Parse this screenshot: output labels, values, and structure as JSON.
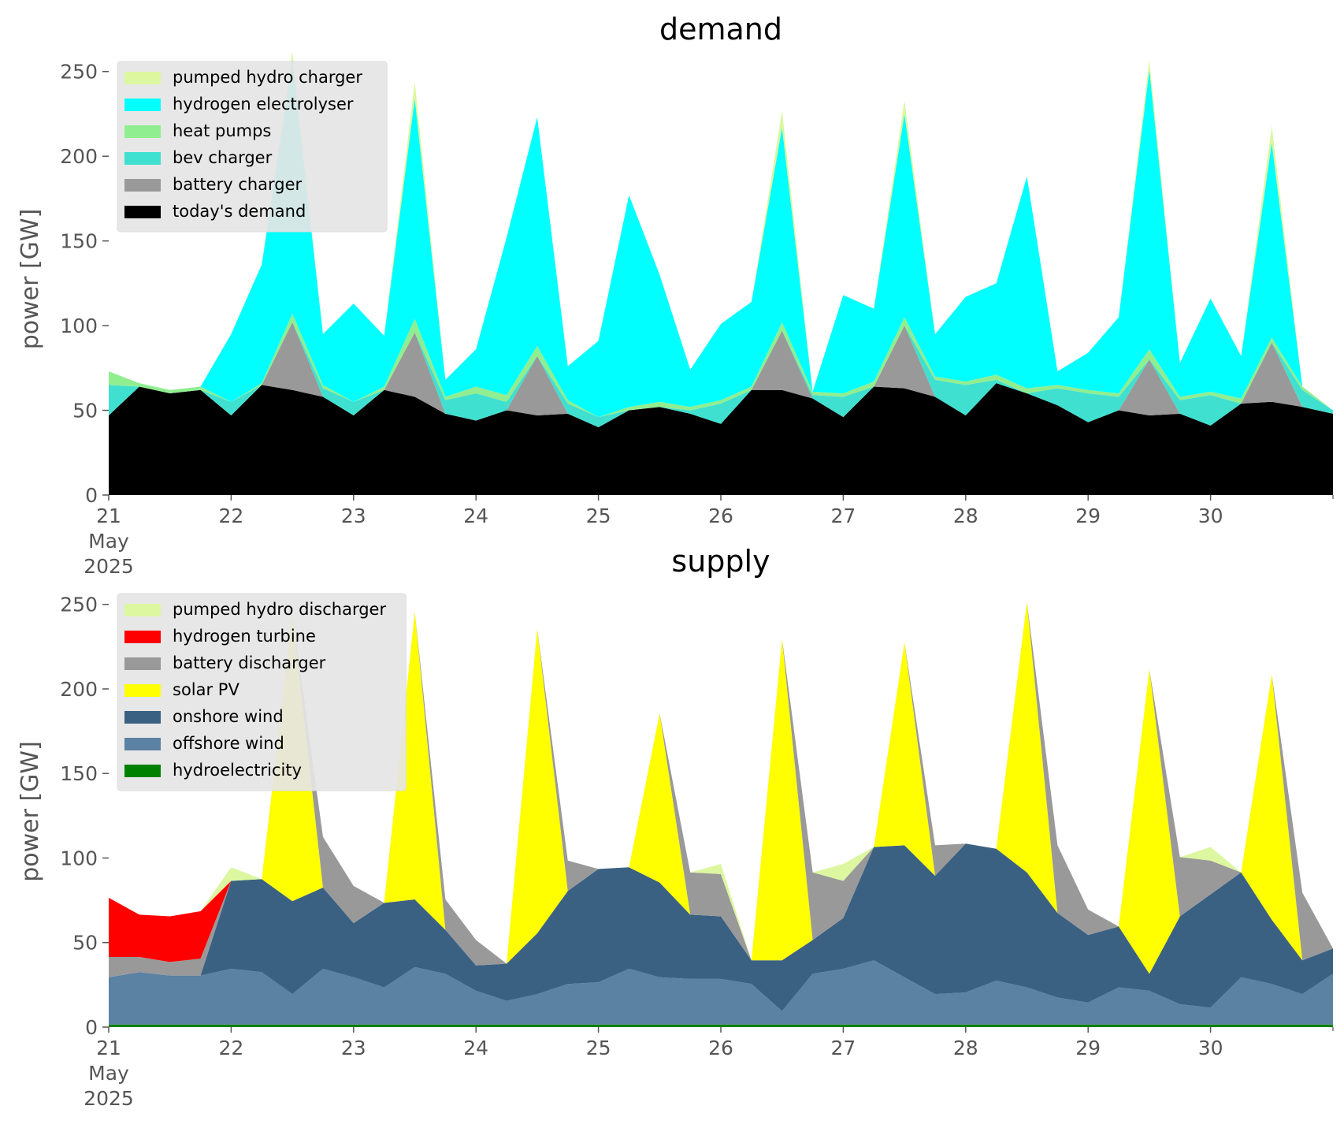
{
  "chart_data": [
    {
      "type": "area",
      "title": "demand",
      "ylabel": "power [GW]",
      "xlabel": "",
      "ylim": [
        0,
        255
      ],
      "yticks": [
        0,
        50,
        100,
        150,
        200,
        250
      ],
      "xlim": [
        0,
        10
      ],
      "xtick_labels": [
        "21\nMay\n2025",
        "22",
        "23",
        "24",
        "25",
        "26",
        "27",
        "28",
        "29",
        "30"
      ],
      "grid": false,
      "legend_position": "top-left",
      "legend": [
        "pumped hydro charger",
        "hydrogen electrolyser",
        "heat pumps",
        "bev charger",
        "battery charger",
        "today's demand"
      ],
      "x": [
        0,
        0.25,
        0.5,
        0.75,
        1,
        1.25,
        1.5,
        1.75,
        2,
        2.25,
        2.5,
        2.75,
        3,
        3.25,
        3.5,
        3.75,
        4,
        4.25,
        4.5,
        4.75,
        5,
        5.25,
        5.5,
        5.75,
        6,
        6.25,
        6.5,
        6.75,
        7,
        7.25,
        7.5,
        7.75,
        8,
        8.25,
        8.5,
        8.75,
        9,
        9.25,
        9.5,
        9.75,
        10
      ],
      "series": [
        {
          "name": "today's demand",
          "color": "#000000",
          "values": [
            47,
            64,
            60,
            62,
            47,
            65,
            62,
            58,
            47,
            62,
            58,
            48,
            44,
            50,
            47,
            48,
            40,
            50,
            52,
            48,
            42,
            62,
            62,
            57,
            46,
            64,
            63,
            58,
            47,
            66,
            60,
            53,
            43,
            50,
            47,
            48,
            41,
            54,
            55,
            52,
            48
          ]
        },
        {
          "name": "battery charger",
          "color": "#999999",
          "values": [
            0,
            0,
            0,
            0,
            0,
            0,
            40,
            0,
            0,
            0,
            38,
            0,
            0,
            0,
            35,
            0,
            0,
            0,
            0,
            0,
            0,
            0,
            35,
            0,
            0,
            0,
            37,
            0,
            0,
            0,
            0,
            0,
            0,
            0,
            33,
            0,
            0,
            0,
            35,
            0,
            0
          ]
        },
        {
          "name": "bev charger",
          "color": "#40e0d0",
          "values": [
            18,
            0,
            0,
            0,
            8,
            0,
            0,
            5,
            8,
            0,
            0,
            8,
            16,
            5,
            0,
            6,
            6,
            0,
            0,
            2,
            12,
            0,
            0,
            2,
            12,
            0,
            0,
            10,
            18,
            2,
            0,
            10,
            17,
            8,
            0,
            8,
            18,
            0,
            0,
            10,
            2
          ]
        },
        {
          "name": "heat pumps",
          "color": "#90ee90",
          "values": [
            8,
            2,
            2,
            2,
            0,
            1,
            5,
            2,
            0,
            2,
            8,
            2,
            4,
            4,
            6,
            2,
            0,
            2,
            3,
            2,
            2,
            2,
            5,
            2,
            2,
            3,
            5,
            2,
            2,
            3,
            3,
            2,
            2,
            2,
            6,
            2,
            2,
            3,
            3,
            2,
            0
          ]
        },
        {
          "name": "hydrogen electrolyser",
          "color": "#00ffff",
          "values": [
            0,
            0,
            0,
            0,
            40,
            70,
            150,
            30,
            58,
            30,
            130,
            10,
            22,
            93,
            135,
            20,
            45,
            125,
            75,
            22,
            45,
            50,
            115,
            0,
            58,
            43,
            120,
            25,
            50,
            54,
            125,
            8,
            22,
            45,
            165,
            20,
            55,
            25,
            115,
            0,
            0
          ]
        },
        {
          "name": "pumped hydro charger",
          "color": "#dcf7a0",
          "values": [
            0,
            0,
            0,
            0,
            0,
            0,
            5,
            0,
            0,
            0,
            10,
            0,
            0,
            0,
            0,
            0,
            0,
            0,
            0,
            0,
            0,
            0,
            10,
            0,
            0,
            0,
            8,
            0,
            0,
            0,
            0,
            0,
            0,
            0,
            6,
            0,
            0,
            0,
            10,
            0,
            0
          ]
        }
      ]
    },
    {
      "type": "area",
      "title": "supply",
      "ylabel": "power [GW]",
      "xlabel": "",
      "ylim": [
        0,
        255
      ],
      "yticks": [
        0,
        50,
        100,
        150,
        200,
        250
      ],
      "xlim": [
        0,
        10
      ],
      "xtick_labels": [
        "21\nMay\n2025",
        "22",
        "23",
        "24",
        "25",
        "26",
        "27",
        "28",
        "29",
        "30"
      ],
      "grid": false,
      "legend_position": "top-left",
      "legend": [
        "pumped hydro discharger",
        "hydrogen turbine",
        "battery discharger",
        "solar PV",
        "onshore wind",
        "offshore wind",
        "hydroelectricity"
      ],
      "x": [
        0,
        0.25,
        0.5,
        0.75,
        1,
        1.25,
        1.5,
        1.75,
        2,
        2.25,
        2.5,
        2.75,
        3,
        3.25,
        3.5,
        3.75,
        4,
        4.25,
        4.5,
        4.75,
        5,
        5.25,
        5.5,
        5.75,
        6,
        6.25,
        6.5,
        6.75,
        7,
        7.25,
        7.5,
        7.75,
        8,
        8.25,
        8.5,
        8.75,
        9,
        9.25,
        9.5,
        9.75,
        10
      ],
      "series": [
        {
          "name": "hydroelectricity",
          "color": "#008000",
          "values": [
            1.5,
            1.5,
            1.5,
            1.5,
            1.5,
            1.5,
            1.5,
            1.5,
            1.5,
            1.5,
            1.5,
            1.5,
            1.5,
            1.5,
            1.5,
            1.5,
            1.5,
            1.5,
            1.5,
            1.5,
            1.5,
            1.5,
            1.5,
            1.5,
            1.5,
            1.5,
            1.5,
            1.5,
            1.5,
            1.5,
            1.5,
            1.5,
            1.5,
            1.5,
            1.5,
            1.5,
            1.5,
            1.5,
            1.5,
            1.5,
            1.5
          ]
        },
        {
          "name": "offshore wind",
          "color": "#5b81a3",
          "values": [
            28,
            31,
            29,
            29,
            33,
            31,
            18,
            33,
            28,
            22,
            34,
            30,
            20,
            14,
            18,
            24,
            25,
            33,
            28,
            27,
            27,
            24,
            8,
            30,
            33,
            38,
            28,
            18,
            19,
            26,
            22,
            16,
            13,
            22,
            20,
            12,
            10,
            28,
            24,
            18,
            30
          ]
        },
        {
          "name": "onshore wind",
          "color": "#3b6182",
          "values": [
            0,
            0,
            0,
            0,
            52,
            55,
            55,
            48,
            32,
            50,
            40,
            26,
            15,
            22,
            36,
            55,
            67,
            60,
            56,
            38,
            37,
            14,
            30,
            20,
            30,
            67,
            78,
            70,
            88,
            78,
            68,
            50,
            40,
            36,
            10,
            52,
            67,
            62,
            38,
            20,
            15
          ]
        },
        {
          "name": "solar PV",
          "color": "#ffff00",
          "values": [
            0,
            0,
            0,
            0,
            0,
            0,
            170,
            0,
            0,
            0,
            170,
            0,
            0,
            0,
            180,
            0,
            0,
            0,
            100,
            0,
            0,
            0,
            190,
            0,
            0,
            0,
            120,
            0,
            0,
            0,
            160,
            0,
            0,
            0,
            180,
            0,
            0,
            0,
            145,
            0,
            0
          ]
        },
        {
          "name": "battery discharger",
          "color": "#999999",
          "values": [
            12,
            9,
            8,
            10,
            0,
            0,
            0,
            30,
            22,
            0,
            0,
            18,
            15,
            0,
            0,
            18,
            0,
            0,
            0,
            25,
            25,
            0,
            0,
            40,
            22,
            0,
            0,
            18,
            0,
            0,
            0,
            40,
            15,
            0,
            0,
            35,
            20,
            0,
            0,
            40,
            0
          ]
        },
        {
          "name": "hydrogen turbine",
          "color": "#ff0000",
          "values": [
            35,
            25,
            27,
            28,
            0,
            0,
            0,
            0,
            0,
            0,
            0,
            0,
            0,
            0,
            0,
            0,
            0,
            0,
            0,
            0,
            0,
            0,
            0,
            0,
            0,
            0,
            0,
            0,
            0,
            0,
            0,
            0,
            0,
            0,
            0,
            0,
            0,
            0,
            0,
            0,
            0
          ]
        },
        {
          "name": "pumped hydro discharger",
          "color": "#dcf7a0",
          "values": [
            0,
            0,
            0,
            0,
            8,
            0,
            0,
            0,
            0,
            0,
            0,
            0,
            0,
            0,
            0,
            0,
            0,
            0,
            0,
            0,
            6,
            0,
            0,
            0,
            10,
            0,
            0,
            0,
            0,
            0,
            0,
            0,
            0,
            0,
            0,
            0,
            8,
            0,
            0,
            0,
            0
          ]
        }
      ]
    }
  ]
}
